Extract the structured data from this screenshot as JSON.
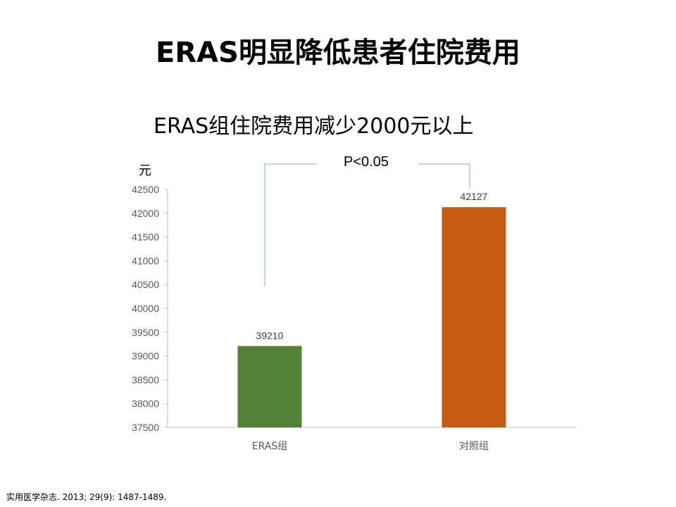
{
  "slide": {
    "title": "ERAS明显降低患者住院费用",
    "subtitle": "ERAS组住院费用减少2000元以上",
    "reference": "实用医学杂志. 2013; 29(9): 1487-1489."
  },
  "chart_data": {
    "type": "bar",
    "categories": [
      "ERAS组",
      "对照组"
    ],
    "values": [
      39210,
      42127
    ],
    "data_labels": [
      "39210",
      "42127"
    ],
    "bar_colors": [
      "#538135",
      "#C55A11"
    ],
    "ylabel": "元",
    "ylim": [
      37500,
      42500
    ],
    "yticks": [
      37500,
      38000,
      38500,
      39000,
      39500,
      40000,
      40500,
      41000,
      41500,
      42000,
      42500
    ],
    "grid": false,
    "annotation": {
      "text": "P<0.05",
      "line_color": "#7FB2C8"
    }
  }
}
